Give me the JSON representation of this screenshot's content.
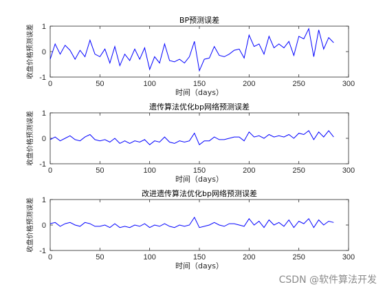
{
  "line_color": "#0000ff",
  "watermark": "CSDN @软件算法开发",
  "chart_data": [
    {
      "type": "line",
      "title": "BP预测误差",
      "xlabel": "时间（days）",
      "ylabel": "收盘价格预测误差",
      "xlim": [
        0,
        300
      ],
      "ylim": [
        -1,
        1
      ],
      "xticks": [
        "0",
        "50",
        "100",
        "150",
        "200",
        "250",
        "300"
      ],
      "yticks": [
        "-1",
        "0",
        "1"
      ],
      "grid": false,
      "x": [
        0,
        5,
        10,
        15,
        20,
        25,
        30,
        35,
        40,
        45,
        50,
        55,
        60,
        65,
        70,
        75,
        80,
        85,
        90,
        95,
        100,
        105,
        110,
        115,
        120,
        125,
        130,
        135,
        140,
        145,
        150,
        155,
        160,
        165,
        170,
        175,
        180,
        185,
        190,
        195,
        200,
        205,
        210,
        215,
        220,
        225,
        230,
        235,
        240,
        245,
        250,
        255,
        260,
        265,
        270,
        275,
        280,
        285
      ],
      "y": [
        -0.3,
        0.3,
        -0.1,
        0.25,
        0.05,
        -0.3,
        0.05,
        -0.2,
        0.45,
        -0.1,
        -0.2,
        0.1,
        -0.45,
        0.2,
        -0.55,
        -0.1,
        -0.35,
        0.1,
        -0.3,
        0.15,
        -0.7,
        -0.2,
        -0.45,
        0.3,
        -0.35,
        -0.4,
        -0.3,
        -0.45,
        -0.2,
        0.4,
        -0.75,
        -0.3,
        -0.25,
        0.2,
        -0.15,
        -0.2,
        -0.1,
        0.05,
        0.1,
        -0.25,
        0.65,
        0.2,
        0.3,
        -0.1,
        0.6,
        0.15,
        0.3,
        0.15,
        0.4,
        -0.15,
        0.6,
        0.5,
        0.9,
        -0.2,
        0.85,
        0.1,
        0.55,
        0.35
      ]
    },
    {
      "type": "line",
      "title": "遗传算法优化bp网络预测误差",
      "xlabel": "时间（days）",
      "ylabel": "收盘价格预测误差",
      "xlim": [
        0,
        300
      ],
      "ylim": [
        -1,
        1
      ],
      "xticks": [
        "0",
        "50",
        "100",
        "150",
        "200",
        "250",
        "300"
      ],
      "yticks": [
        "-1",
        "0",
        "1"
      ],
      "grid": false,
      "x": [
        0,
        5,
        10,
        15,
        20,
        25,
        30,
        35,
        40,
        45,
        50,
        55,
        60,
        65,
        70,
        75,
        80,
        85,
        90,
        95,
        100,
        105,
        110,
        115,
        120,
        125,
        130,
        135,
        140,
        145,
        150,
        155,
        160,
        165,
        170,
        175,
        180,
        185,
        190,
        195,
        200,
        205,
        210,
        215,
        220,
        225,
        230,
        235,
        240,
        245,
        250,
        255,
        260,
        265,
        270,
        275,
        280,
        285
      ],
      "y": [
        -0.05,
        0.05,
        -0.1,
        0.0,
        0.1,
        -0.05,
        -0.1,
        0.05,
        0.15,
        -0.05,
        -0.1,
        -0.05,
        -0.15,
        0.0,
        -0.2,
        -0.1,
        -0.2,
        -0.1,
        -0.15,
        -0.05,
        -0.25,
        -0.1,
        -0.15,
        0.05,
        -0.15,
        -0.2,
        -0.1,
        -0.15,
        -0.1,
        0.2,
        -0.25,
        -0.1,
        -0.1,
        0.05,
        -0.05,
        -0.05,
        0.0,
        0.05,
        0.05,
        -0.1,
        0.25,
        0.05,
        0.1,
        0.0,
        0.15,
        0.05,
        0.1,
        0.05,
        0.15,
        0.0,
        0.2,
        0.15,
        0.3,
        -0.05,
        0.25,
        0.05,
        0.3,
        0.05
      ]
    },
    {
      "type": "line",
      "title": "改进遗传算法优化bp网络预测误差",
      "xlabel": "时间（days）",
      "ylabel": "收盘价格预测误差",
      "xlim": [
        0,
        300
      ],
      "ylim": [
        -1,
        1
      ],
      "xticks": [
        "0",
        "50",
        "100",
        "150",
        "200",
        "250",
        "300"
      ],
      "yticks": [
        "-1",
        "0",
        "1"
      ],
      "grid": false,
      "x": [
        0,
        5,
        10,
        15,
        20,
        25,
        30,
        35,
        40,
        45,
        50,
        55,
        60,
        65,
        70,
        75,
        80,
        85,
        90,
        95,
        100,
        105,
        110,
        115,
        120,
        125,
        130,
        135,
        140,
        145,
        150,
        155,
        160,
        165,
        170,
        175,
        180,
        185,
        190,
        195,
        200,
        205,
        210,
        215,
        220,
        225,
        230,
        235,
        240,
        245,
        250,
        255,
        260,
        265,
        270,
        275,
        280,
        285
      ],
      "y": [
        0.05,
        0.1,
        -0.05,
        0.05,
        0.1,
        0.0,
        -0.05,
        0.1,
        0.05,
        -0.05,
        -0.05,
        0.0,
        -0.1,
        0.05,
        -0.1,
        -0.05,
        -0.1,
        0.0,
        -0.05,
        0.05,
        -0.1,
        0.0,
        -0.05,
        0.05,
        -0.05,
        -0.1,
        0.0,
        -0.05,
        0.0,
        0.3,
        -0.1,
        -0.05,
        0.0,
        0.1,
        0.0,
        -0.05,
        0.05,
        0.05,
        0.0,
        -0.05,
        0.25,
        0.0,
        0.15,
        -0.1,
        0.2,
        0.0,
        0.1,
        -0.05,
        0.2,
        -0.1,
        0.15,
        0.05,
        0.25,
        -0.1,
        0.2,
        0.0,
        0.15,
        0.1
      ]
    }
  ]
}
